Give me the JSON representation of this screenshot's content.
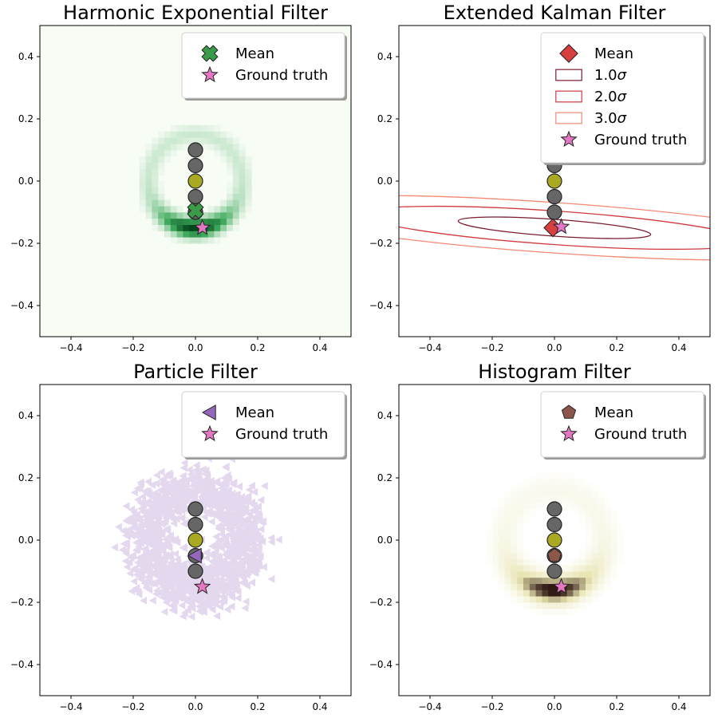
{
  "figure": {
    "background": "#ffffff"
  },
  "chart_data": [
    {
      "id": "hef",
      "type": "heatmap",
      "title": "Harmonic Exponential Filter",
      "xlim": [
        -0.5,
        0.5
      ],
      "ylim": [
        -0.5,
        0.5
      ],
      "xticks": [
        -0.4,
        -0.2,
        0.0,
        0.2,
        0.4
      ],
      "yticks": [
        -0.4,
        -0.2,
        0.0,
        0.2,
        0.4
      ],
      "tick_labels": [
        "−0.4",
        "−0.2",
        "0.0",
        "0.2",
        "0.4"
      ],
      "grid": false,
      "colormap": "Greens",
      "background_color": "#f7fcf5",
      "belief_distribution": {
        "center": [
          0.0,
          0.0
        ],
        "ring_radius": 0.15,
        "ring_width": 0.02,
        "peak_direction": [
          0.0,
          -1.0
        ],
        "concentration": 4.0,
        "cell_size": 0.02,
        "color_low": "#f7fcf5",
        "color_mid": "#41ab5d",
        "color_high": "#00441b"
      },
      "trajectory_points": [
        {
          "x": 0.0,
          "y": 0.1,
          "color": "#666666"
        },
        {
          "x": 0.0,
          "y": 0.05,
          "color": "#666666"
        },
        {
          "x": 0.0,
          "y": 0.0,
          "color": "#aaaa22"
        },
        {
          "x": 0.0,
          "y": -0.05,
          "color": "#666666"
        },
        {
          "x": 0.0,
          "y": -0.1,
          "color": "#666666"
        }
      ],
      "mean": {
        "x": 0.0,
        "y": -0.095,
        "marker": "X",
        "color": "#3a9b48"
      },
      "ground_truth": {
        "x": 0.022,
        "y": -0.15,
        "marker": "star",
        "color": "#e377c2"
      },
      "legend": {
        "placement": "top-right",
        "entries": [
          {
            "marker": "X",
            "color": "#3a9b48",
            "label": "Mean"
          },
          {
            "marker": "star",
            "color": "#e377c2",
            "label": "Ground truth"
          }
        ]
      }
    },
    {
      "id": "ekf",
      "type": "contour",
      "title": "Extended Kalman Filter",
      "xlim": [
        -0.5,
        0.5
      ],
      "ylim": [
        -0.5,
        0.5
      ],
      "xticks": [
        -0.4,
        -0.2,
        0.0,
        0.2,
        0.4
      ],
      "yticks": [
        -0.4,
        -0.2,
        0.0,
        0.2,
        0.4
      ],
      "tick_labels": [
        "−0.4",
        "−0.2",
        "0.0",
        "0.2",
        "0.4"
      ],
      "grid": false,
      "ellipse_center": [
        0.0,
        -0.15
      ],
      "ellipse_semi_axes": [
        0.31,
        0.027
      ],
      "ellipse_rotation_deg": -4,
      "ellipses": [
        {
          "sigma": 1.0,
          "color": "#7a1b2e"
        },
        {
          "sigma": 2.0,
          "color": "#d03a3f"
        },
        {
          "sigma": 3.0,
          "color": "#f58a72"
        }
      ],
      "trajectory_points": [
        {
          "x": 0.0,
          "y": 0.1,
          "color": "#666666"
        },
        {
          "x": 0.0,
          "y": 0.05,
          "color": "#666666"
        },
        {
          "x": 0.0,
          "y": 0.0,
          "color": "#aaaa22"
        },
        {
          "x": 0.0,
          "y": -0.05,
          "color": "#666666"
        },
        {
          "x": 0.0,
          "y": -0.1,
          "color": "#666666"
        }
      ],
      "mean": {
        "x": -0.005,
        "y": -0.15,
        "marker": "D",
        "color": "#d84040"
      },
      "ground_truth": {
        "x": 0.022,
        "y": -0.147,
        "marker": "star",
        "color": "#e377c2"
      },
      "legend": {
        "placement": "top-right",
        "entries": [
          {
            "marker": "D",
            "color": "#d84040",
            "label": "Mean"
          },
          {
            "marker": "rect",
            "color": "#7a1b2e",
            "label": "1.0σ",
            "label_prefix": "1.0",
            "label_symbol": "σ"
          },
          {
            "marker": "rect",
            "color": "#d03a3f",
            "label": "2.0σ",
            "label_prefix": "2.0",
            "label_symbol": "σ"
          },
          {
            "marker": "rect",
            "color": "#f58a72",
            "label": "3.0σ",
            "label_prefix": "3.0",
            "label_symbol": "σ"
          },
          {
            "marker": "star",
            "color": "#e377c2",
            "label": "Ground truth"
          }
        ]
      }
    },
    {
      "id": "pf",
      "type": "scatter",
      "title": "Particle Filter",
      "xlim": [
        -0.5,
        0.5
      ],
      "ylim": [
        -0.5,
        0.5
      ],
      "xticks": [
        -0.4,
        -0.2,
        0.0,
        0.2,
        0.4
      ],
      "yticks": [
        -0.4,
        -0.2,
        0.0,
        0.2,
        0.4
      ],
      "tick_labels": [
        "−0.4",
        "−0.2",
        "0.0",
        "0.2",
        "0.4"
      ],
      "grid": false,
      "particles": {
        "marker": "triangle-left",
        "color": "#9467bd",
        "center": [
          0.0,
          0.0
        ],
        "mean_radius": 0.16,
        "radial_spread": 0.04,
        "alpha": 0.25
      },
      "trajectory_points": [
        {
          "x": 0.0,
          "y": 0.1,
          "color": "#666666"
        },
        {
          "x": 0.0,
          "y": 0.05,
          "color": "#666666"
        },
        {
          "x": 0.0,
          "y": 0.0,
          "color": "#aaaa22"
        },
        {
          "x": 0.0,
          "y": -0.05,
          "color": "#666666"
        },
        {
          "x": 0.0,
          "y": -0.1,
          "color": "#666666"
        }
      ],
      "mean": {
        "x": 0.0,
        "y": -0.05,
        "marker": "triangle-left",
        "color": "#9467bd"
      },
      "ground_truth": {
        "x": 0.022,
        "y": -0.15,
        "marker": "star",
        "color": "#e377c2"
      },
      "legend": {
        "placement": "top-right",
        "entries": [
          {
            "marker": "triangle-left",
            "color": "#9467bd",
            "label": "Mean"
          },
          {
            "marker": "star",
            "color": "#e377c2",
            "label": "Ground truth"
          }
        ]
      }
    },
    {
      "id": "hf",
      "type": "heatmap",
      "title": "Histogram Filter",
      "xlim": [
        -0.5,
        0.5
      ],
      "ylim": [
        -0.5,
        0.5
      ],
      "xticks": [
        -0.4,
        -0.2,
        0.0,
        0.2,
        0.4
      ],
      "yticks": [
        -0.4,
        -0.2,
        0.0,
        0.2,
        0.4
      ],
      "tick_labels": [
        "−0.4",
        "−0.2",
        "0.0",
        "0.2",
        "0.4"
      ],
      "grid": false,
      "colormap": "pink_r",
      "background_color": "#ffffff",
      "belief_distribution": {
        "center": [
          0.0,
          0.0
        ],
        "ring_radius": 0.16,
        "ring_width": 0.03,
        "peak_direction": [
          0.0,
          -1.0
        ],
        "concentration": 3.0,
        "cell_size": 0.02,
        "color_low": "#ffffff",
        "color_mid": "#e8e4b0",
        "color_high": "#1a0000"
      },
      "trajectory_points": [
        {
          "x": 0.0,
          "y": 0.1,
          "color": "#666666"
        },
        {
          "x": 0.0,
          "y": 0.05,
          "color": "#666666"
        },
        {
          "x": 0.0,
          "y": 0.0,
          "color": "#aaaa22"
        },
        {
          "x": 0.0,
          "y": -0.05,
          "color": "#666666"
        },
        {
          "x": 0.0,
          "y": -0.1,
          "color": "#666666"
        }
      ],
      "mean": {
        "x": 0.0,
        "y": -0.05,
        "marker": "pentagon",
        "color": "#8c564b"
      },
      "ground_truth": {
        "x": 0.022,
        "y": -0.15,
        "marker": "star",
        "color": "#e377c2"
      },
      "legend": {
        "placement": "top-right",
        "entries": [
          {
            "marker": "pentagon",
            "color": "#8c564b",
            "label": "Mean"
          },
          {
            "marker": "star",
            "color": "#e377c2",
            "label": "Ground truth"
          }
        ]
      }
    }
  ]
}
